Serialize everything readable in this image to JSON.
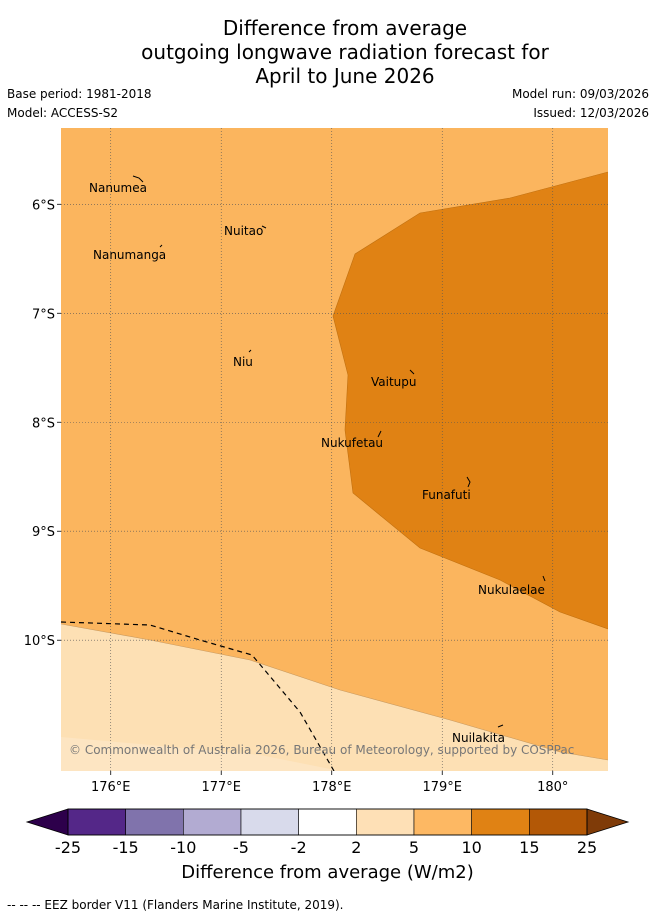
{
  "title": {
    "line1": "Difference from average",
    "line2": "outgoing longwave radiation forecast for",
    "line3": "April to June 2026"
  },
  "meta": {
    "base_period": "Base period: 1981-2018",
    "model": "Model: ACCESS-S2",
    "model_run": "Model run: 09/03/2026",
    "issued": "Issued: 12/03/2026"
  },
  "map": {
    "lon_range": [
      175.55,
      180.5
    ],
    "lat_range": [
      -11.2,
      -5.3
    ],
    "lat_ticks": [
      {
        "value": -6,
        "label": "6°S"
      },
      {
        "value": -7,
        "label": "7°S"
      },
      {
        "value": -8,
        "label": "8°S"
      },
      {
        "value": -9,
        "label": "9°S"
      },
      {
        "value": -10,
        "label": "10°S"
      }
    ],
    "lon_ticks": [
      {
        "value": 176,
        "label": "176°E"
      },
      {
        "value": 177,
        "label": "177°E"
      },
      {
        "value": 178,
        "label": "178°E"
      },
      {
        "value": 179,
        "label": "179°E"
      },
      {
        "value": 180,
        "label": "180°"
      }
    ],
    "colors": {
      "band_5_10": "#fbb55e",
      "band_10_15": "#e08214",
      "band_2_5": "#fde0b4"
    },
    "islands": [
      {
        "name": "Nanumea",
        "lon": 176.1
      },
      {
        "name": "Nuitao",
        "lon": 177.3
      },
      {
        "name": "Nanumanga",
        "lon": 176.3
      },
      {
        "name": "Niu",
        "lon": 177.15
      },
      {
        "name": "Vaitupu",
        "lon": 178.67
      },
      {
        "name": "Nukufetau",
        "lon": 178.38
      },
      {
        "name": "Funafuti",
        "lon": 179.2
      },
      {
        "name": "Nukulaelae",
        "lon": 179.84
      },
      {
        "name": "Nuilakita",
        "lon": 179.5
      }
    ],
    "copyright": "© Commonwealth of Australia 2026, Bureau of Meteorology, supported by COSPPac"
  },
  "colorbar": {
    "labels": [
      "-25",
      "-15",
      "-10",
      "-5",
      "-2",
      "2",
      "5",
      "10",
      "15",
      "25"
    ],
    "colors": [
      "#542788",
      "#8073ac",
      "#b2abd2",
      "#d8daeb",
      "#ffffff",
      "#fee0b6",
      "#fdb863",
      "#e08214",
      "#b35806"
    ],
    "low_extend_color": "#2d004b",
    "high_extend_color": "#7f3b08",
    "title": "Difference from average (W/m2)"
  },
  "footnote": "-- -- -- EEZ border V11 (Flanders Marine Institute, 2019)."
}
